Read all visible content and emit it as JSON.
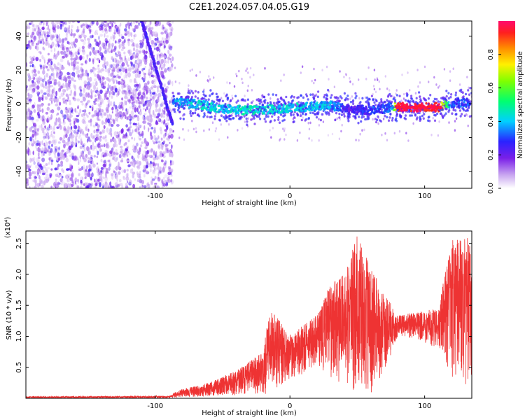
{
  "figure": {
    "title": "C2E1.2024.057.04.05.G19"
  },
  "chart_data": [
    {
      "type": "heatmap",
      "xlabel": "Height of straight line (km)",
      "ylabel": "Frequency (Hz)",
      "xlim": [
        -196,
        135
      ],
      "ylim": [
        -50,
        49
      ],
      "xticks": [
        -100,
        0,
        100
      ],
      "yticks": [
        -40,
        -20,
        0,
        20,
        40
      ],
      "colorbar": {
        "label": "Normalized spectral amplitude",
        "range": [
          0.0,
          1.0
        ],
        "ticks": [
          0.0,
          0.2,
          0.4,
          0.6,
          0.8
        ],
        "tick_labels": [
          "0.0",
          "0.2",
          "0.4",
          "0.6",
          "0.8"
        ]
      },
      "noise_region": {
        "x": [
          -196,
          -87
        ],
        "y": [
          -50,
          49
        ],
        "amplitude": 0.05
      },
      "chirp_track": [
        {
          "x": -110,
          "y": 49
        },
        {
          "x": -103,
          "y": 30
        },
        {
          "x": -96,
          "y": 12
        },
        {
          "x": -90,
          "y": -5
        },
        {
          "x": -87,
          "y": -12
        }
      ],
      "signal_track": [
        {
          "x": -87,
          "y": 1,
          "amplitude": 0.35
        },
        {
          "x": -70,
          "y": 0,
          "amplitude": 0.42
        },
        {
          "x": -50,
          "y": -3,
          "amplitude": 0.4
        },
        {
          "x": -30,
          "y": -4,
          "amplitude": 0.45
        },
        {
          "x": -10,
          "y": -3,
          "amplitude": 0.42
        },
        {
          "x": 10,
          "y": -2,
          "amplitude": 0.4
        },
        {
          "x": 30,
          "y": -1,
          "amplitude": 0.38
        },
        {
          "x": 45,
          "y": -3,
          "amplitude": 0.22
        },
        {
          "x": 60,
          "y": -4,
          "amplitude": 0.28
        },
        {
          "x": 75,
          "y": -2,
          "amplitude": 0.3
        },
        {
          "x": 80,
          "y": -2,
          "amplitude": 0.95
        },
        {
          "x": 110,
          "y": -2,
          "amplitude": 0.95
        },
        {
          "x": 120,
          "y": 0,
          "amplitude": 0.3
        },
        {
          "x": 135,
          "y": 1,
          "amplitude": 0.3
        }
      ]
    },
    {
      "type": "line",
      "xlabel": "Height of straight line (km)",
      "ylabel": "SNR (10 * v/v)",
      "y_multiplier": "(x10⁴)",
      "xlim": [
        -196,
        135
      ],
      "ylim": [
        0,
        2.7
      ],
      "xticks": [
        -100,
        0,
        100
      ],
      "yticks": [
        0.5,
        1.0,
        1.5,
        2.0,
        2.5
      ],
      "ytick_labels": [
        "0.5",
        "1.0",
        "1.5",
        "2.0",
        "2.5"
      ],
      "series": [
        {
          "color": "#ee3333",
          "envelope": [
            {
              "x": -196,
              "lo": 0.0,
              "hi": 0.03
            },
            {
              "x": -90,
              "lo": 0.0,
              "hi": 0.04
            },
            {
              "x": -80,
              "lo": 0.02,
              "hi": 0.15
            },
            {
              "x": -60,
              "lo": 0.03,
              "hi": 0.25
            },
            {
              "x": -40,
              "lo": 0.05,
              "hi": 0.45
            },
            {
              "x": -20,
              "lo": 0.05,
              "hi": 0.75
            },
            {
              "x": -15,
              "lo": 0.1,
              "hi": 1.45
            },
            {
              "x": 0,
              "lo": 0.3,
              "hi": 1.05
            },
            {
              "x": 20,
              "lo": 0.5,
              "hi": 1.35
            },
            {
              "x": 30,
              "lo": 0.3,
              "hi": 1.85
            },
            {
              "x": 40,
              "lo": 0.2,
              "hi": 2.0
            },
            {
              "x": 50,
              "lo": 0.1,
              "hi": 2.65
            },
            {
              "x": 60,
              "lo": 0.05,
              "hi": 2.1
            },
            {
              "x": 70,
              "lo": 0.4,
              "hi": 1.7
            },
            {
              "x": 80,
              "lo": 1.0,
              "hi": 1.35
            },
            {
              "x": 95,
              "lo": 0.95,
              "hi": 1.4
            },
            {
              "x": 110,
              "lo": 0.8,
              "hi": 1.45
            },
            {
              "x": 120,
              "lo": 0.3,
              "hi": 2.55
            },
            {
              "x": 135,
              "lo": 0.15,
              "hi": 2.6
            }
          ]
        }
      ]
    }
  ]
}
